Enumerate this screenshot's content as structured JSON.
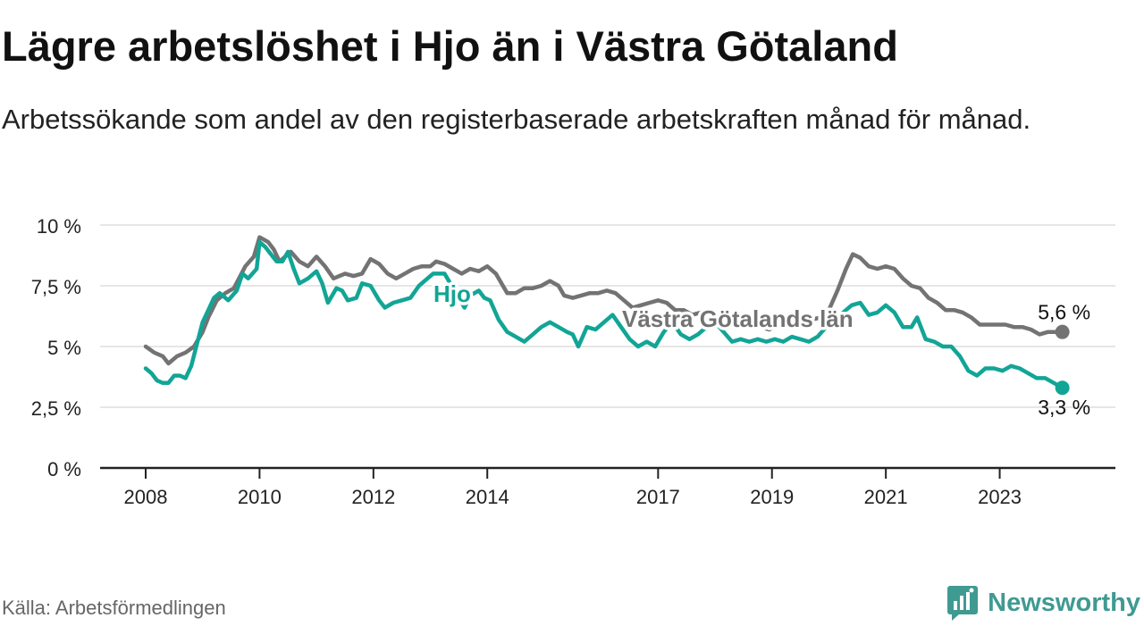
{
  "title": "Lägre arbetslöshet i Hjo än i Västra Götaland",
  "subtitle": "Arbetssökande som andel av den registerbaserade arbetskraften månad för månad.",
  "source": "Källa: Arbetsförmedlingen",
  "brand": "Newsworthy",
  "colors": {
    "hjo": "#12a596",
    "vg": "#737373",
    "grid": "#dddddd",
    "axis": "#222222",
    "brand": "#3f9a92"
  },
  "chart_data": {
    "type": "line",
    "title": "Lägre arbetslöshet i Hjo än i Västra Götaland",
    "xlabel": "",
    "ylabel": "",
    "ylim": [
      0,
      10
    ],
    "xlim": [
      2008.0,
      2024.2
    ],
    "y_ticks": [
      {
        "value": 0,
        "label": "0 %"
      },
      {
        "value": 2.5,
        "label": "2,5 %"
      },
      {
        "value": 5,
        "label": "5 %"
      },
      {
        "value": 7.5,
        "label": "7,5 %"
      },
      {
        "value": 10,
        "label": "10 %"
      }
    ],
    "x_ticks": [
      {
        "value": 2008,
        "label": "2008"
      },
      {
        "value": 2010,
        "label": "2010"
      },
      {
        "value": 2012,
        "label": "2012"
      },
      {
        "value": 2014,
        "label": "2014"
      },
      {
        "value": 2017,
        "label": "2017"
      },
      {
        "value": 2019,
        "label": "2019"
      },
      {
        "value": 2021,
        "label": "2021"
      },
      {
        "value": 2023,
        "label": "2023"
      }
    ],
    "series": [
      {
        "name": "Västra Götalands län",
        "color": "#737373",
        "label": "Västra Götalands län",
        "end_label": "5,6 %",
        "points": [
          [
            2008.0,
            5.0
          ],
          [
            2008.15,
            4.75
          ],
          [
            2008.3,
            4.6
          ],
          [
            2008.4,
            4.3
          ],
          [
            2008.55,
            4.6
          ],
          [
            2008.7,
            4.75
          ],
          [
            2008.85,
            5.0
          ],
          [
            2009.0,
            5.6
          ],
          [
            2009.1,
            6.2
          ],
          [
            2009.25,
            6.9
          ],
          [
            2009.4,
            7.2
          ],
          [
            2009.55,
            7.4
          ],
          [
            2009.75,
            8.3
          ],
          [
            2009.9,
            8.7
          ],
          [
            2010.0,
            9.5
          ],
          [
            2010.15,
            9.3
          ],
          [
            2010.25,
            9.0
          ],
          [
            2010.35,
            8.5
          ],
          [
            2010.45,
            8.7
          ],
          [
            2010.55,
            8.9
          ],
          [
            2010.7,
            8.5
          ],
          [
            2010.85,
            8.3
          ],
          [
            2011.0,
            8.7
          ],
          [
            2011.15,
            8.3
          ],
          [
            2011.3,
            7.8
          ],
          [
            2011.5,
            8.0
          ],
          [
            2011.65,
            7.9
          ],
          [
            2011.8,
            8.0
          ],
          [
            2011.95,
            8.6
          ],
          [
            2012.1,
            8.4
          ],
          [
            2012.25,
            8.0
          ],
          [
            2012.4,
            7.8
          ],
          [
            2012.55,
            8.0
          ],
          [
            2012.7,
            8.2
          ],
          [
            2012.85,
            8.3
          ],
          [
            2013.0,
            8.3
          ],
          [
            2013.1,
            8.5
          ],
          [
            2013.25,
            8.4
          ],
          [
            2013.4,
            8.2
          ],
          [
            2013.55,
            8.0
          ],
          [
            2013.7,
            8.2
          ],
          [
            2013.85,
            8.1
          ],
          [
            2014.0,
            8.3
          ],
          [
            2014.15,
            8.0
          ],
          [
            2014.25,
            7.6
          ],
          [
            2014.35,
            7.2
          ],
          [
            2014.5,
            7.2
          ],
          [
            2014.65,
            7.4
          ],
          [
            2014.8,
            7.4
          ],
          [
            2014.95,
            7.5
          ],
          [
            2015.1,
            7.7
          ],
          [
            2015.25,
            7.5
          ],
          [
            2015.35,
            7.1
          ],
          [
            2015.5,
            7.0
          ],
          [
            2015.65,
            7.1
          ],
          [
            2015.8,
            7.2
          ],
          [
            2015.95,
            7.2
          ],
          [
            2016.1,
            7.3
          ],
          [
            2016.25,
            7.2
          ],
          [
            2016.4,
            6.9
          ],
          [
            2016.55,
            6.6
          ],
          [
            2016.7,
            6.7
          ],
          [
            2016.85,
            6.8
          ],
          [
            2017.0,
            6.9
          ],
          [
            2017.15,
            6.8
          ],
          [
            2017.3,
            6.5
          ],
          [
            2017.45,
            6.5
          ],
          [
            2017.6,
            6.3
          ],
          [
            2017.75,
            6.4
          ],
          [
            2017.9,
            6.3
          ],
          [
            2018.05,
            6.0
          ],
          [
            2018.2,
            5.9
          ],
          [
            2018.35,
            6.0
          ],
          [
            2018.5,
            6.0
          ],
          [
            2018.65,
            5.8
          ],
          [
            2018.8,
            5.8
          ],
          [
            2018.95,
            5.7
          ],
          [
            2019.1,
            5.9
          ],
          [
            2019.25,
            5.8
          ],
          [
            2019.4,
            5.9
          ],
          [
            2019.55,
            6.0
          ],
          [
            2019.7,
            6.1
          ],
          [
            2019.85,
            6.2
          ],
          [
            2020.0,
            6.5
          ],
          [
            2020.15,
            7.3
          ],
          [
            2020.3,
            8.2
          ],
          [
            2020.42,
            8.8
          ],
          [
            2020.55,
            8.65
          ],
          [
            2020.7,
            8.3
          ],
          [
            2020.85,
            8.2
          ],
          [
            2021.0,
            8.3
          ],
          [
            2021.15,
            8.2
          ],
          [
            2021.3,
            7.8
          ],
          [
            2021.45,
            7.5
          ],
          [
            2021.6,
            7.4
          ],
          [
            2021.75,
            7.0
          ],
          [
            2021.9,
            6.8
          ],
          [
            2022.05,
            6.5
          ],
          [
            2022.2,
            6.5
          ],
          [
            2022.35,
            6.4
          ],
          [
            2022.5,
            6.2
          ],
          [
            2022.65,
            5.9
          ],
          [
            2022.8,
            5.9
          ],
          [
            2022.95,
            5.9
          ],
          [
            2023.1,
            5.9
          ],
          [
            2023.25,
            5.8
          ],
          [
            2023.4,
            5.8
          ],
          [
            2023.55,
            5.7
          ],
          [
            2023.7,
            5.5
          ],
          [
            2023.85,
            5.6
          ],
          [
            2024.0,
            5.6
          ],
          [
            2024.1,
            5.6
          ]
        ]
      },
      {
        "name": "Hjo",
        "color": "#12a596",
        "label": "Hjo",
        "end_label": "3,3 %",
        "points": [
          [
            2008.0,
            4.1
          ],
          [
            2008.1,
            3.9
          ],
          [
            2008.2,
            3.6
          ],
          [
            2008.3,
            3.5
          ],
          [
            2008.4,
            3.5
          ],
          [
            2008.5,
            3.8
          ],
          [
            2008.6,
            3.8
          ],
          [
            2008.7,
            3.7
          ],
          [
            2008.8,
            4.2
          ],
          [
            2008.9,
            5.1
          ],
          [
            2009.0,
            6.0
          ],
          [
            2009.1,
            6.5
          ],
          [
            2009.2,
            7.0
          ],
          [
            2009.3,
            7.2
          ],
          [
            2009.45,
            6.9
          ],
          [
            2009.6,
            7.3
          ],
          [
            2009.7,
            8.0
          ],
          [
            2009.8,
            7.8
          ],
          [
            2009.95,
            8.2
          ],
          [
            2010.0,
            9.3
          ],
          [
            2010.1,
            9.1
          ],
          [
            2010.2,
            8.8
          ],
          [
            2010.3,
            8.5
          ],
          [
            2010.4,
            8.5
          ],
          [
            2010.5,
            8.9
          ],
          [
            2010.6,
            8.2
          ],
          [
            2010.7,
            7.6
          ],
          [
            2010.85,
            7.8
          ],
          [
            2011.0,
            8.1
          ],
          [
            2011.1,
            7.6
          ],
          [
            2011.2,
            6.8
          ],
          [
            2011.35,
            7.4
          ],
          [
            2011.45,
            7.3
          ],
          [
            2011.55,
            6.9
          ],
          [
            2011.7,
            7.0
          ],
          [
            2011.8,
            7.6
          ],
          [
            2011.95,
            7.5
          ],
          [
            2012.1,
            6.9
          ],
          [
            2012.2,
            6.6
          ],
          [
            2012.35,
            6.8
          ],
          [
            2012.5,
            6.9
          ],
          [
            2012.65,
            7.0
          ],
          [
            2012.8,
            7.5
          ],
          [
            2012.95,
            7.8
          ],
          [
            2013.05,
            8.0
          ],
          [
            2013.15,
            8.0
          ],
          [
            2013.25,
            8.0
          ],
          [
            2013.35,
            7.6
          ],
          [
            2013.5,
            7.0
          ],
          [
            2013.6,
            6.6
          ],
          [
            2013.7,
            7.1
          ],
          [
            2013.85,
            7.3
          ],
          [
            2013.95,
            7.0
          ],
          [
            2014.05,
            6.9
          ],
          [
            2014.2,
            6.1
          ],
          [
            2014.35,
            5.6
          ],
          [
            2014.5,
            5.4
          ],
          [
            2014.65,
            5.2
          ],
          [
            2014.8,
            5.5
          ],
          [
            2014.95,
            5.8
          ],
          [
            2015.1,
            6.0
          ],
          [
            2015.25,
            5.8
          ],
          [
            2015.4,
            5.6
          ],
          [
            2015.5,
            5.5
          ],
          [
            2015.6,
            5.0
          ],
          [
            2015.75,
            5.8
          ],
          [
            2015.9,
            5.7
          ],
          [
            2016.05,
            6.0
          ],
          [
            2016.2,
            6.3
          ],
          [
            2016.35,
            5.8
          ],
          [
            2016.5,
            5.3
          ],
          [
            2016.65,
            5.0
          ],
          [
            2016.8,
            5.2
          ],
          [
            2016.95,
            5.0
          ],
          [
            2017.1,
            5.6
          ],
          [
            2017.25,
            6.0
          ],
          [
            2017.4,
            5.5
          ],
          [
            2017.55,
            5.3
          ],
          [
            2017.7,
            5.5
          ],
          [
            2017.85,
            5.8
          ],
          [
            2018.0,
            6.0
          ],
          [
            2018.15,
            5.6
          ],
          [
            2018.3,
            5.2
          ],
          [
            2018.45,
            5.3
          ],
          [
            2018.6,
            5.2
          ],
          [
            2018.75,
            5.3
          ],
          [
            2018.9,
            5.2
          ],
          [
            2019.05,
            5.3
          ],
          [
            2019.2,
            5.2
          ],
          [
            2019.35,
            5.4
          ],
          [
            2019.5,
            5.3
          ],
          [
            2019.65,
            5.2
          ],
          [
            2019.8,
            5.4
          ],
          [
            2019.95,
            5.8
          ],
          [
            2020.1,
            6.0
          ],
          [
            2020.25,
            6.4
          ],
          [
            2020.4,
            6.7
          ],
          [
            2020.55,
            6.8
          ],
          [
            2020.7,
            6.3
          ],
          [
            2020.85,
            6.4
          ],
          [
            2021.0,
            6.7
          ],
          [
            2021.15,
            6.4
          ],
          [
            2021.3,
            5.8
          ],
          [
            2021.45,
            5.8
          ],
          [
            2021.55,
            6.2
          ],
          [
            2021.7,
            5.3
          ],
          [
            2021.85,
            5.2
          ],
          [
            2022.0,
            5.0
          ],
          [
            2022.15,
            5.0
          ],
          [
            2022.3,
            4.6
          ],
          [
            2022.45,
            4.0
          ],
          [
            2022.6,
            3.8
          ],
          [
            2022.75,
            4.1
          ],
          [
            2022.9,
            4.1
          ],
          [
            2023.05,
            4.0
          ],
          [
            2023.2,
            4.2
          ],
          [
            2023.35,
            4.1
          ],
          [
            2023.5,
            3.9
          ],
          [
            2023.65,
            3.7
          ],
          [
            2023.8,
            3.7
          ],
          [
            2023.95,
            3.5
          ],
          [
            2024.1,
            3.3
          ]
        ]
      }
    ]
  }
}
